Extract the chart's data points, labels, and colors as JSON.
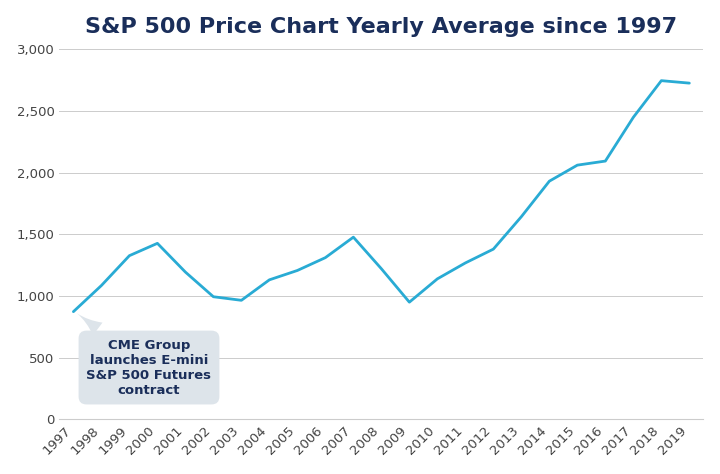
{
  "title": "S&P 500 Price Chart Yearly Average since 1997",
  "years": [
    1997,
    1998,
    1999,
    2000,
    2001,
    2002,
    2003,
    2004,
    2005,
    2006,
    2007,
    2008,
    2009,
    2010,
    2011,
    2012,
    2013,
    2014,
    2015,
    2016,
    2017,
    2018,
    2019
  ],
  "values": [
    873,
    1085,
    1327,
    1427,
    1194,
    994,
    965,
    1131,
    1207,
    1311,
    1477,
    1221,
    950,
    1139,
    1268,
    1380,
    1643,
    1931,
    2061,
    2094,
    2449,
    2746,
    2726
  ],
  "line_color": "#29ABD4",
  "background_color": "#ffffff",
  "title_color": "#1a2e5a",
  "annotation_text": "CME Group\nlaunches E-mini\nS&P 500 Futures\ncontract",
  "annotation_box_color": "#dde4ea",
  "ylim": [
    0,
    3000
  ],
  "yticks": [
    0,
    500,
    1000,
    1500,
    2000,
    2500,
    3000
  ],
  "tick_color": "#444444",
  "grid_color": "#cccccc",
  "title_fontsize": 16,
  "tick_fontsize": 9.5,
  "line_width": 2.0
}
